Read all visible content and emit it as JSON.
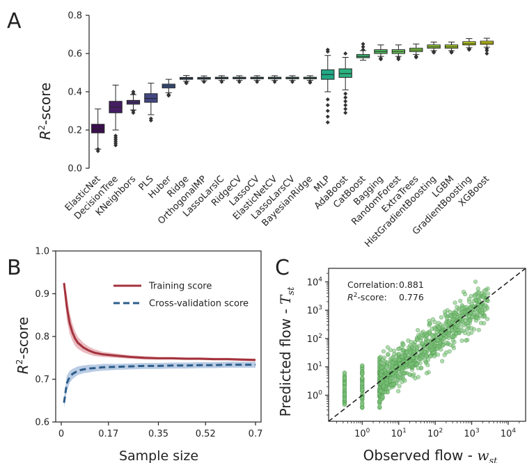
{
  "chart_data": [
    {
      "panel": "A",
      "type": "box",
      "ylabel_main": "R",
      "ylabel_sup": "2",
      "ylabel_rest": "-score",
      "ylim": [
        0,
        0.8
      ],
      "yticks": [
        "0.0",
        "0.2",
        "0.4",
        "0.6",
        "0.8"
      ],
      "categories": [
        "ElasticNet",
        "DecisionTree",
        "KNeighbors",
        "PLS",
        "Huber",
        "Ridge",
        "OrthogonalMP",
        "LassoLarsIC",
        "RidgeCV",
        "LassoCV",
        "ElasticNetCV",
        "LassoLarsCV",
        "BayesianRidge",
        "MLP",
        "AdaBoost",
        "CatBoost",
        "Bagging",
        "RandomForest",
        "ExtraTrees",
        "HistGradientBoosting",
        "LGBM",
        "GradientBoosting",
        "XGBoost"
      ],
      "colors": [
        "#3b0f4f",
        "#451d63",
        "#472f74",
        "#434783",
        "#3d5689",
        "#38618c",
        "#346d8d",
        "#30778e",
        "#2c818e",
        "#298b8d",
        "#26958c",
        "#229f88",
        "#20a986",
        "#22a885",
        "#2ab07f",
        "#3fbb75",
        "#56c567",
        "#6ecc5d",
        "#85d54a",
        "#9cd93b",
        "#b5de2b",
        "#cde11d",
        "#e5e419"
      ],
      "boxes": [
        {
          "q1": 0.185,
          "median": 0.205,
          "q3": 0.23,
          "wlo": 0.1,
          "whi": 0.31,
          "fliers": [
            0.09,
            0.1
          ]
        },
        {
          "q1": 0.29,
          "median": 0.32,
          "q3": 0.35,
          "wlo": 0.2,
          "whi": 0.435,
          "fliers": [
            0.12,
            0.13,
            0.14,
            0.15,
            0.16,
            0.17
          ]
        },
        {
          "q1": 0.335,
          "median": 0.345,
          "q3": 0.355,
          "wlo": 0.305,
          "whi": 0.385,
          "fliers": [
            0.29,
            0.3,
            0.39,
            0.4
          ]
        },
        {
          "q1": 0.345,
          "median": 0.365,
          "q3": 0.39,
          "wlo": 0.28,
          "whi": 0.445,
          "fliers": [
            0.25,
            0.26
          ]
        },
        {
          "q1": 0.42,
          "median": 0.43,
          "q3": 0.44,
          "wlo": 0.395,
          "whi": 0.465,
          "fliers": [
            0.38,
            0.385
          ]
        },
        {
          "q1": 0.465,
          "median": 0.47,
          "q3": 0.475,
          "wlo": 0.455,
          "whi": 0.485,
          "fliers": [
            0.445,
            0.45
          ]
        },
        {
          "q1": 0.466,
          "median": 0.47,
          "q3": 0.475,
          "wlo": 0.458,
          "whi": 0.483,
          "fliers": [
            0.452
          ]
        },
        {
          "q1": 0.468,
          "median": 0.472,
          "q3": 0.476,
          "wlo": 0.46,
          "whi": 0.484,
          "fliers": [
            0.452
          ]
        },
        {
          "q1": 0.468,
          "median": 0.472,
          "q3": 0.476,
          "wlo": 0.46,
          "whi": 0.484,
          "fliers": [
            0.452
          ]
        },
        {
          "q1": 0.468,
          "median": 0.472,
          "q3": 0.476,
          "wlo": 0.46,
          "whi": 0.484,
          "fliers": [
            0.452
          ]
        },
        {
          "q1": 0.468,
          "median": 0.472,
          "q3": 0.476,
          "wlo": 0.46,
          "whi": 0.484,
          "fliers": [
            0.452
          ]
        },
        {
          "q1": 0.468,
          "median": 0.472,
          "q3": 0.476,
          "wlo": 0.46,
          "whi": 0.484,
          "fliers": [
            0.452
          ]
        },
        {
          "q1": 0.468,
          "median": 0.472,
          "q3": 0.476,
          "wlo": 0.46,
          "whi": 0.484,
          "fliers": [
            0.448,
            0.452
          ]
        },
        {
          "q1": 0.465,
          "median": 0.49,
          "q3": 0.515,
          "wlo": 0.4,
          "whi": 0.59,
          "fliers": [
            0.24,
            0.27,
            0.3,
            0.33,
            0.36,
            0.61,
            0.62
          ]
        },
        {
          "q1": 0.475,
          "median": 0.495,
          "q3": 0.52,
          "wlo": 0.41,
          "whi": 0.58,
          "fliers": [
            0.29,
            0.31,
            0.33,
            0.35,
            0.37,
            0.39,
            0.6
          ]
        },
        {
          "q1": 0.578,
          "median": 0.585,
          "q3": 0.595,
          "wlo": 0.565,
          "whi": 0.615,
          "fliers": [
            0.62,
            0.635,
            0.65
          ]
        },
        {
          "q1": 0.6,
          "median": 0.61,
          "q3": 0.62,
          "wlo": 0.585,
          "whi": 0.645,
          "fliers": [
            0.57,
            0.575
          ]
        },
        {
          "q1": 0.6,
          "median": 0.61,
          "q3": 0.62,
          "wlo": 0.585,
          "whi": 0.645,
          "fliers": [
            0.57,
            0.578
          ]
        },
        {
          "q1": 0.61,
          "median": 0.618,
          "q3": 0.628,
          "wlo": 0.595,
          "whi": 0.65,
          "fliers": [
            0.58,
            0.585
          ]
        },
        {
          "q1": 0.628,
          "median": 0.635,
          "q3": 0.645,
          "wlo": 0.615,
          "whi": 0.66,
          "fliers": [
            0.605,
            0.61
          ]
        },
        {
          "q1": 0.628,
          "median": 0.635,
          "q3": 0.645,
          "wlo": 0.615,
          "whi": 0.66,
          "fliers": [
            0.605,
            0.61
          ]
        },
        {
          "q1": 0.645,
          "median": 0.652,
          "q3": 0.662,
          "wlo": 0.63,
          "whi": 0.678,
          "fliers": [
            0.62,
            0.625
          ]
        },
        {
          "q1": 0.648,
          "median": 0.655,
          "q3": 0.665,
          "wlo": 0.633,
          "whi": 0.68,
          "fliers": [
            0.6,
            0.615,
            0.625
          ]
        }
      ]
    },
    {
      "panel": "B",
      "type": "line",
      "ylabel_main": "R",
      "ylabel_sup": "2",
      "ylabel_rest": "-score",
      "xlabel": "Sample size",
      "xlim": [
        -0.02,
        0.72
      ],
      "ylim": [
        0.6,
        1.0
      ],
      "xticks": [
        0,
        0.17,
        0.35,
        0.52,
        0.7
      ],
      "xtick_labels": [
        "0",
        "0.17",
        "0.35",
        "0.52",
        "0.7"
      ],
      "yticks": [
        0.6,
        0.7,
        0.8,
        0.9,
        1.0
      ],
      "ytick_labels": [
        "0.6",
        "0.7",
        "0.8",
        "0.9",
        "1.0"
      ],
      "legend_position": "top-right",
      "x": [
        0.01,
        0.02,
        0.03,
        0.04,
        0.05,
        0.06,
        0.08,
        0.1,
        0.12,
        0.15,
        0.2,
        0.25,
        0.3,
        0.35,
        0.4,
        0.45,
        0.5,
        0.55,
        0.6,
        0.65,
        0.7
      ],
      "series": [
        {
          "name": "Training score",
          "color": "#a3323c",
          "band_color": "#e3a9b0",
          "dash": "",
          "values": [
            0.925,
            0.87,
            0.832,
            0.81,
            0.795,
            0.785,
            0.774,
            0.767,
            0.762,
            0.758,
            0.755,
            0.752,
            0.75,
            0.749,
            0.749,
            0.748,
            0.748,
            0.747,
            0.747,
            0.746,
            0.745
          ],
          "band": [
            0.004,
            0.03,
            0.025,
            0.02,
            0.017,
            0.014,
            0.011,
            0.009,
            0.008,
            0.006,
            0.005,
            0.004,
            0.004,
            0.003,
            0.003,
            0.003,
            0.003,
            0.003,
            0.003,
            0.003,
            0.003
          ]
        },
        {
          "name": "Cross-validation score",
          "color": "#2c5d8a",
          "band_color": "#a9bfdd",
          "dash": "9,5",
          "values": [
            0.645,
            0.69,
            0.705,
            0.712,
            0.716,
            0.72,
            0.723,
            0.725,
            0.726,
            0.728,
            0.729,
            0.73,
            0.731,
            0.731,
            0.732,
            0.732,
            0.733,
            0.733,
            0.734,
            0.734,
            0.734
          ],
          "band": [
            0.012,
            0.018,
            0.014,
            0.012,
            0.011,
            0.01,
            0.009,
            0.009,
            0.008,
            0.008,
            0.007,
            0.007,
            0.007,
            0.007,
            0.007,
            0.007,
            0.007,
            0.007,
            0.007,
            0.007,
            0.007
          ]
        }
      ]
    },
    {
      "panel": "C",
      "type": "scatter",
      "xlabel_main": "Observed flow - ",
      "xlabel_var": "w",
      "xlabel_sub": "st",
      "ylabel_main": "Predicted flow - ",
      "ylabel_var": "T",
      "ylabel_sub": "st",
      "xscale": "log",
      "yscale": "log",
      "xlim": [
        0.12,
        30000
      ],
      "ylim": [
        0.12,
        30000
      ],
      "xtick_exponents": [
        0,
        1,
        2,
        3,
        4
      ],
      "ytick_exponents": [
        0,
        1,
        2,
        3,
        4
      ],
      "tick_base": "10",
      "diagonal": "y = x (dashed)",
      "point_color": "#7dc47a",
      "point_stroke": "#4a8f4a",
      "annotations": {
        "corr_label": "Correlation:",
        "corr_value": "0.881",
        "r2_label_main": "R",
        "r2_label_sup": "2",
        "r2_label_rest": "-score:",
        "r2_value": "0.776"
      }
    }
  ]
}
